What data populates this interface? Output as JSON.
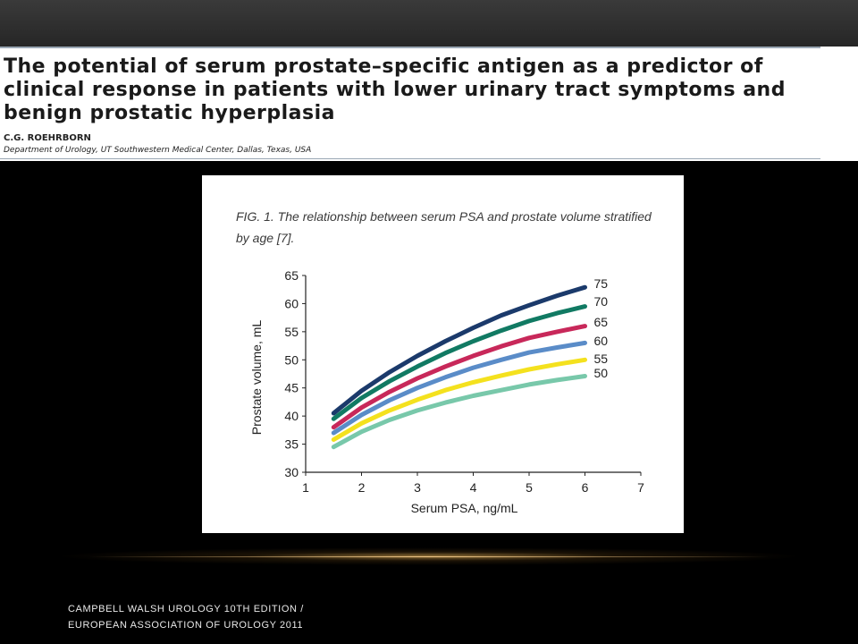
{
  "article": {
    "title": "The potential of serum prostate–specific antigen as a predictor of clinical response in patients with lower urinary tract symptoms and benign prostatic hyperplasia",
    "author": "C.G. ROEHRBORN",
    "affiliation": "Department of Urology, UT Southwestern Medical Center, Dallas, Texas, USA"
  },
  "figure": {
    "caption": "FIG. 1. The relationship between serum PSA and prostate volume stratified by age [7]."
  },
  "chart_data": {
    "type": "line",
    "title": "",
    "xlabel": "Serum PSA, ng/mL",
    "ylabel": "Prostate volume, mL",
    "xlim": [
      1,
      7
    ],
    "ylim": [
      30,
      65
    ],
    "x_ticks": [
      1,
      2,
      3,
      4,
      5,
      6,
      7
    ],
    "y_ticks": [
      30,
      35,
      40,
      45,
      50,
      55,
      60,
      65
    ],
    "grid": false,
    "legend": "labels at right end of each line",
    "x": [
      1.5,
      2,
      2.5,
      3,
      3.5,
      4,
      4.5,
      5,
      5.5,
      6
    ],
    "series": [
      {
        "name": "75",
        "color": "#1b3a6b",
        "values": [
          40.5,
          44.5,
          47.8,
          50.7,
          53.3,
          55.7,
          57.9,
          59.7,
          61.4,
          62.9
        ]
      },
      {
        "name": "70",
        "color": "#117a63",
        "values": [
          39.5,
          43.2,
          46.2,
          48.8,
          51.2,
          53.3,
          55.2,
          56.9,
          58.3,
          59.5
        ]
      },
      {
        "name": "65",
        "color": "#c8285a",
        "values": [
          38.0,
          41.5,
          44.3,
          46.7,
          48.8,
          50.7,
          52.4,
          53.9,
          55.0,
          56.0
        ]
      },
      {
        "name": "60",
        "color": "#5a8cc8",
        "values": [
          37.0,
          40.2,
          42.8,
          45.0,
          46.9,
          48.6,
          50.0,
          51.3,
          52.2,
          53.0
        ]
      },
      {
        "name": "55",
        "color": "#f4e11e",
        "values": [
          35.8,
          38.7,
          41.0,
          42.9,
          44.6,
          46.0,
          47.2,
          48.3,
          49.2,
          50.0
        ]
      },
      {
        "name": "50",
        "color": "#78c8aa",
        "values": [
          34.5,
          37.2,
          39.3,
          41.0,
          42.4,
          43.6,
          44.6,
          45.6,
          46.4,
          47.1
        ]
      }
    ]
  },
  "footer": {
    "line1": "CAMPBELL WALSH UROLOGY 10TH EDITION /",
    "line2": "EUROPEAN ASSOCIATION OF UROLOGY 2011"
  }
}
